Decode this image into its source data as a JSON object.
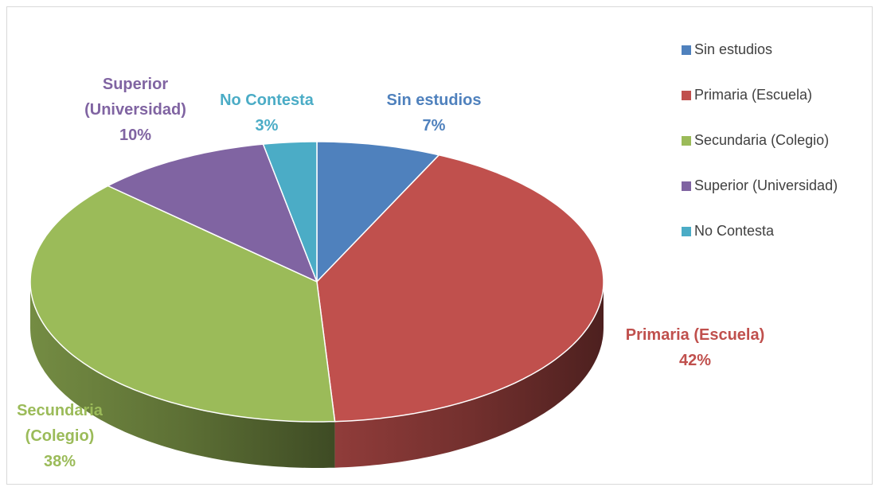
{
  "chart_data": {
    "type": "pie",
    "categories": [
      "Sin estudios",
      "Primaria (Escuela)",
      "Secundaria (Colegio)",
      "Superior (Universidad)",
      "No Contesta"
    ],
    "values": [
      7,
      42,
      38,
      10,
      3
    ],
    "value_labels": [
      "7%",
      "42%",
      "38%",
      "10%",
      "3%"
    ],
    "colors": [
      "#4f81bd",
      "#c0504d",
      "#9bbb59",
      "#8064a2",
      "#4bacc6"
    ],
    "legend": "right"
  }
}
